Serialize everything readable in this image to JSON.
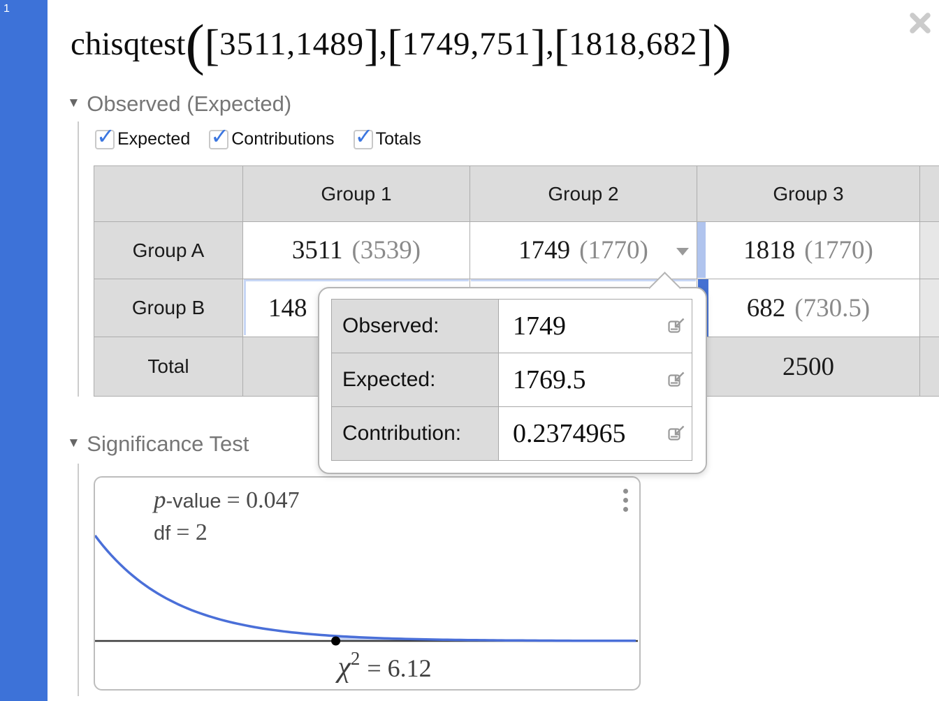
{
  "expression": {
    "index": "1",
    "function": "chisqtest",
    "args": [
      "3511,1489",
      "1749,751",
      "1818,682"
    ]
  },
  "sections": {
    "observed": "Observed (Expected)",
    "significance": "Significance Test"
  },
  "checkboxes": [
    {
      "label": "Expected",
      "checked": true
    },
    {
      "label": "Contributions",
      "checked": true
    },
    {
      "label": "Totals",
      "checked": true
    }
  ],
  "table": {
    "col_headers": [
      "Group 1",
      "Group 2",
      "Group 3"
    ],
    "row_headers": [
      "Group A",
      "Group B",
      "Total"
    ],
    "rows": {
      "group_a": {
        "g1_obs": "3511",
        "g1_exp": "(3539)",
        "g2_obs": "1749",
        "g2_exp": "(1770)",
        "g3_obs": "1818",
        "g3_exp": "(1770)"
      },
      "group_b": {
        "g1_obs_visible": "148",
        "g3_obs": "682",
        "g3_exp": "(730.5)"
      },
      "total": {
        "g3": "2500"
      }
    }
  },
  "tooltip": {
    "rows": [
      {
        "label": "Observed:",
        "value": "1749"
      },
      {
        "label": "Expected:",
        "value": "1769.5"
      },
      {
        "label": "Contribution:",
        "value": "0.2374965"
      }
    ]
  },
  "chart_data": {
    "type": "area",
    "title": "chi-squared significance test, df = 2, right tail shaded beyond chi-squared = 6.12",
    "p_value": 0.047,
    "df": 2,
    "chi_squared": 6.12,
    "x_range": [
      0,
      13.8
    ],
    "curve": "pdf(x) proportional to exp(-x/2)",
    "marker_x": 6.12,
    "marker_on_axis": true,
    "shaded_region": "x > 6.12",
    "grid": false,
    "labels": {
      "p_italic": "p",
      "p_sans": "-value",
      "p_eq": "= 0.047",
      "df_sans": "df",
      "df_eq": "= 2",
      "chi": "χ",
      "chi_sup": "2",
      "chi_eq": "= 6.12"
    }
  },
  "colors": {
    "gutter_blue": "#3d72d8",
    "checkbox_blue": "#3b76e0",
    "curve_blue": "#4a6fd8",
    "highlight_light_blue": "#b0c4ee",
    "highlight_dark_blue": "#4470d2",
    "header_gray": "#dcdcdc"
  }
}
